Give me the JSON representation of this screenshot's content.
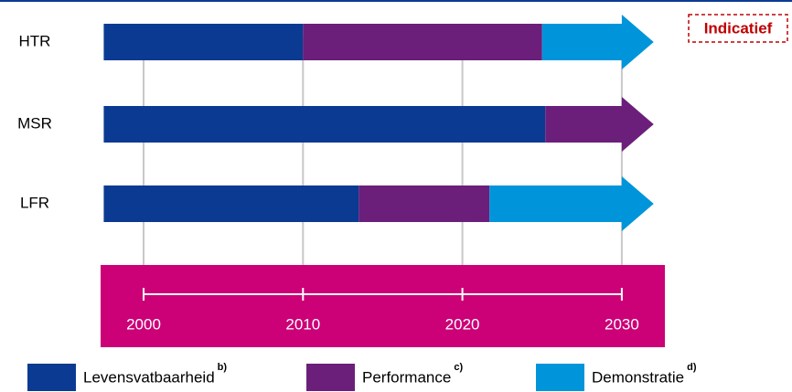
{
  "chart_data": {
    "type": "timeline",
    "annotation": "Indicatief",
    "categories": [
      "HTR",
      "MSR",
      "LFR"
    ],
    "series": [
      {
        "name": "Levensvatbaarheid",
        "note": "b)",
        "color": "#0b3a93",
        "values": [
          [
            1997.5,
            2010
          ],
          [
            1997.5,
            2025.2
          ],
          [
            1997.5,
            2013.5
          ]
        ]
      },
      {
        "name": "Performance",
        "note": "c)",
        "color": "#6b1f7b",
        "values": [
          [
            2010,
            2025
          ],
          [
            2025.2,
            2032
          ],
          [
            2013.5,
            2021.7
          ]
        ]
      },
      {
        "name": "Demonstratie",
        "note": "d)",
        "color": "#0095da",
        "values": [
          [
            2025,
            2032
          ],
          null,
          [
            2021.7,
            2032
          ]
        ]
      }
    ],
    "xlim": [
      1997.5,
      2032
    ],
    "xticks": [
      2000,
      2010,
      2020,
      2030
    ],
    "grid": true
  }
}
